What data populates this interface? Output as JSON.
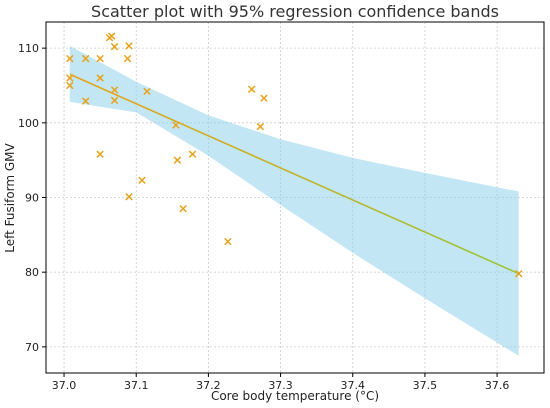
{
  "chart_data": {
    "type": "scatter",
    "title": "Scatter plot with 95% regression confidence bands",
    "xlabel": "Core body temperature (°C)",
    "ylabel": "Left Fusiform GMV",
    "xlim": [
      36.975,
      37.665
    ],
    "ylim": [
      66.5,
      113.5
    ],
    "xticks": [
      37.0,
      37.1,
      37.2,
      37.3,
      37.4,
      37.5,
      37.6
    ],
    "xtick_labels": [
      "37.0",
      "37.1",
      "37.2",
      "37.3",
      "37.4",
      "37.5",
      "37.6"
    ],
    "yticks": [
      70,
      80,
      90,
      100,
      110
    ],
    "ytick_labels": [
      "70",
      "80",
      "90",
      "100",
      "110"
    ],
    "grid": true,
    "points": [
      {
        "x": 37.008,
        "y": 108.6
      },
      {
        "x": 37.008,
        "y": 106.0
      },
      {
        "x": 37.008,
        "y": 105.0
      },
      {
        "x": 37.03,
        "y": 108.6
      },
      {
        "x": 37.03,
        "y": 102.9
      },
      {
        "x": 37.05,
        "y": 108.6
      },
      {
        "x": 37.05,
        "y": 106.0
      },
      {
        "x": 37.05,
        "y": 95.8
      },
      {
        "x": 37.063,
        "y": 111.4
      },
      {
        "x": 37.066,
        "y": 111.6
      },
      {
        "x": 37.07,
        "y": 110.2
      },
      {
        "x": 37.07,
        "y": 104.4
      },
      {
        "x": 37.07,
        "y": 103.0
      },
      {
        "x": 37.088,
        "y": 108.6
      },
      {
        "x": 37.09,
        "y": 110.3
      },
      {
        "x": 37.09,
        "y": 90.1
      },
      {
        "x": 37.108,
        "y": 92.3
      },
      {
        "x": 37.115,
        "y": 104.2
      },
      {
        "x": 37.155,
        "y": 99.7
      },
      {
        "x": 37.157,
        "y": 95.0
      },
      {
        "x": 37.165,
        "y": 88.5
      },
      {
        "x": 37.178,
        "y": 95.8
      },
      {
        "x": 37.227,
        "y": 84.1
      },
      {
        "x": 37.26,
        "y": 104.5
      },
      {
        "x": 37.272,
        "y": 99.5
      },
      {
        "x": 37.277,
        "y": 103.3
      },
      {
        "x": 37.63,
        "y": 79.8
      }
    ],
    "regression_line": {
      "x": [
        37.008,
        37.63
      ],
      "y": [
        106.5,
        79.8
      ]
    },
    "confidence_band": {
      "x": [
        37.008,
        37.1,
        37.2,
        37.3,
        37.4,
        37.5,
        37.63
      ],
      "upper": [
        110.3,
        105.5,
        101.0,
        97.8,
        95.3,
        93.3,
        90.8
      ],
      "lower": [
        102.8,
        101.4,
        95.6,
        89.0,
        82.6,
        76.5,
        68.8
      ]
    },
    "colors": {
      "points": "#e8a21a",
      "line": "#e8a21a",
      "line_end": "#9ac63a",
      "band": "#87ceeb",
      "grid": "#cccccc",
      "axis": "#000000"
    }
  }
}
